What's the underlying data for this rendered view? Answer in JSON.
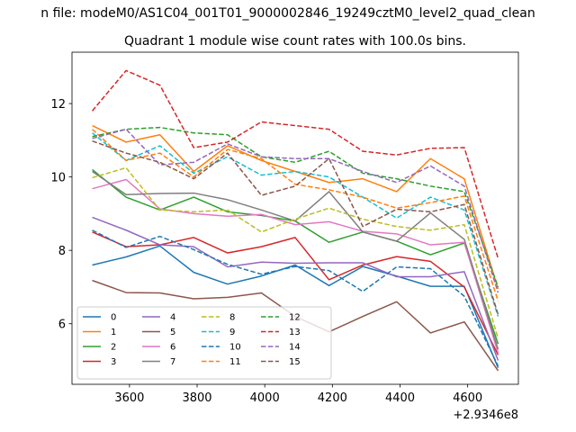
{
  "chart_data": {
    "type": "line",
    "suptitle": "n file: modeM0/AS1C04_001T01_9000002846_19249cztM0_level2_quad_clean",
    "title": "Quadrant 1 module wise count rates with 100.0s bins.",
    "xlabel": "",
    "ylabel": "",
    "x_offset_label": "+2.9346e8",
    "x": [
      3490,
      3590,
      3690,
      3790,
      3890,
      3990,
      4090,
      4190,
      4290,
      4390,
      4490,
      4590,
      4690
    ],
    "xlim": [
      3430,
      4750
    ],
    "ylim": [
      4.35,
      13.4
    ],
    "xticks": [
      3600,
      3800,
      4000,
      4200,
      4400,
      4600
    ],
    "yticks": [
      6,
      8,
      10,
      12
    ],
    "legend_position": "lower-left",
    "legend_columns": 4,
    "series": [
      {
        "name": "0",
        "color": "#1f77b4",
        "dash": "solid",
        "values": [
          7.6,
          7.82,
          8.12,
          7.4,
          7.08,
          7.3,
          7.6,
          7.04,
          7.56,
          7.3,
          7.02,
          7.02,
          4.8
        ]
      },
      {
        "name": "1",
        "color": "#ff7f0e",
        "dash": "solid",
        "values": [
          11.4,
          10.95,
          11.15,
          10.15,
          10.85,
          10.45,
          10.15,
          9.85,
          9.95,
          9.6,
          10.5,
          9.95,
          6.95
        ]
      },
      {
        "name": "2",
        "color": "#2ca02c",
        "dash": "solid",
        "values": [
          10.2,
          9.45,
          9.1,
          9.45,
          9.05,
          8.95,
          8.8,
          8.22,
          8.5,
          8.25,
          7.88,
          8.2,
          5.45
        ]
      },
      {
        "name": "3",
        "color": "#d62728",
        "dash": "solid",
        "values": [
          8.5,
          8.1,
          8.15,
          8.35,
          7.93,
          8.1,
          8.35,
          7.2,
          7.6,
          7.83,
          7.7,
          7.0,
          5.15
        ]
      },
      {
        "name": "4",
        "color": "#9467bd",
        "dash": "solid",
        "values": [
          8.9,
          8.55,
          8.15,
          8.1,
          7.55,
          7.68,
          7.65,
          7.66,
          7.66,
          7.28,
          7.28,
          7.42,
          5.0
        ]
      },
      {
        "name": "5",
        "color": "#8c564b",
        "dash": "solid",
        "values": [
          7.18,
          6.85,
          6.84,
          6.68,
          6.72,
          6.84,
          6.2,
          5.78,
          6.2,
          6.6,
          5.75,
          6.05,
          4.72
        ]
      },
      {
        "name": "6",
        "color": "#e377c2",
        "dash": "solid",
        "values": [
          9.68,
          9.93,
          9.13,
          9.0,
          8.93,
          8.98,
          8.7,
          8.78,
          8.52,
          8.45,
          8.15,
          8.22,
          5.2
        ]
      },
      {
        "name": "7",
        "color": "#7f7f7f",
        "dash": "solid",
        "values": [
          10.15,
          9.52,
          9.55,
          9.56,
          9.38,
          9.1,
          8.8,
          9.6,
          8.5,
          8.25,
          9.02,
          8.3,
          5.3
        ]
      },
      {
        "name": "8",
        "color": "#bcbd22",
        "dash": "dashed",
        "values": [
          9.98,
          10.25,
          9.1,
          9.05,
          9.1,
          8.5,
          8.85,
          9.15,
          8.85,
          8.65,
          8.55,
          8.7,
          5.6
        ]
      },
      {
        "name": "9",
        "color": "#17becf",
        "dash": "dashed",
        "values": [
          11.2,
          10.45,
          10.85,
          10.1,
          10.55,
          10.05,
          10.15,
          10.0,
          9.45,
          8.88,
          9.45,
          9.1,
          6.2
        ]
      },
      {
        "name": "10",
        "color": "#1f77b4",
        "dash": "dashed",
        "values": [
          8.55,
          8.08,
          8.38,
          8.02,
          7.62,
          7.35,
          7.56,
          7.45,
          6.88,
          7.55,
          7.5,
          6.75,
          4.85
        ]
      },
      {
        "name": "11",
        "color": "#ff7f0e",
        "dash": "dashed",
        "values": [
          11.3,
          10.45,
          10.65,
          10.0,
          10.75,
          10.5,
          9.8,
          9.65,
          9.45,
          9.15,
          9.3,
          9.48,
          6.62
        ]
      },
      {
        "name": "12",
        "color": "#2ca02c",
        "dash": "dashed",
        "values": [
          11.1,
          11.3,
          11.35,
          11.2,
          11.15,
          10.55,
          10.4,
          10.7,
          10.1,
          9.95,
          9.75,
          9.6,
          7.0
        ]
      },
      {
        "name": "13",
        "color": "#d62728",
        "dash": "dashed",
        "values": [
          11.8,
          12.9,
          12.5,
          10.8,
          10.95,
          11.5,
          11.4,
          11.3,
          10.7,
          10.6,
          10.78,
          10.8,
          7.78
        ]
      },
      {
        "name": "14",
        "color": "#9467bd",
        "dash": "dashed",
        "values": [
          11.05,
          11.3,
          10.33,
          10.4,
          10.9,
          10.55,
          10.5,
          10.5,
          10.15,
          9.85,
          10.3,
          9.75,
          6.85
        ]
      },
      {
        "name": "15",
        "color": "#8c564b",
        "dash": "dashed",
        "values": [
          10.98,
          10.65,
          10.4,
          9.95,
          10.65,
          9.5,
          9.75,
          10.5,
          8.65,
          9.12,
          9.05,
          9.25,
          6.25
        ]
      }
    ]
  }
}
